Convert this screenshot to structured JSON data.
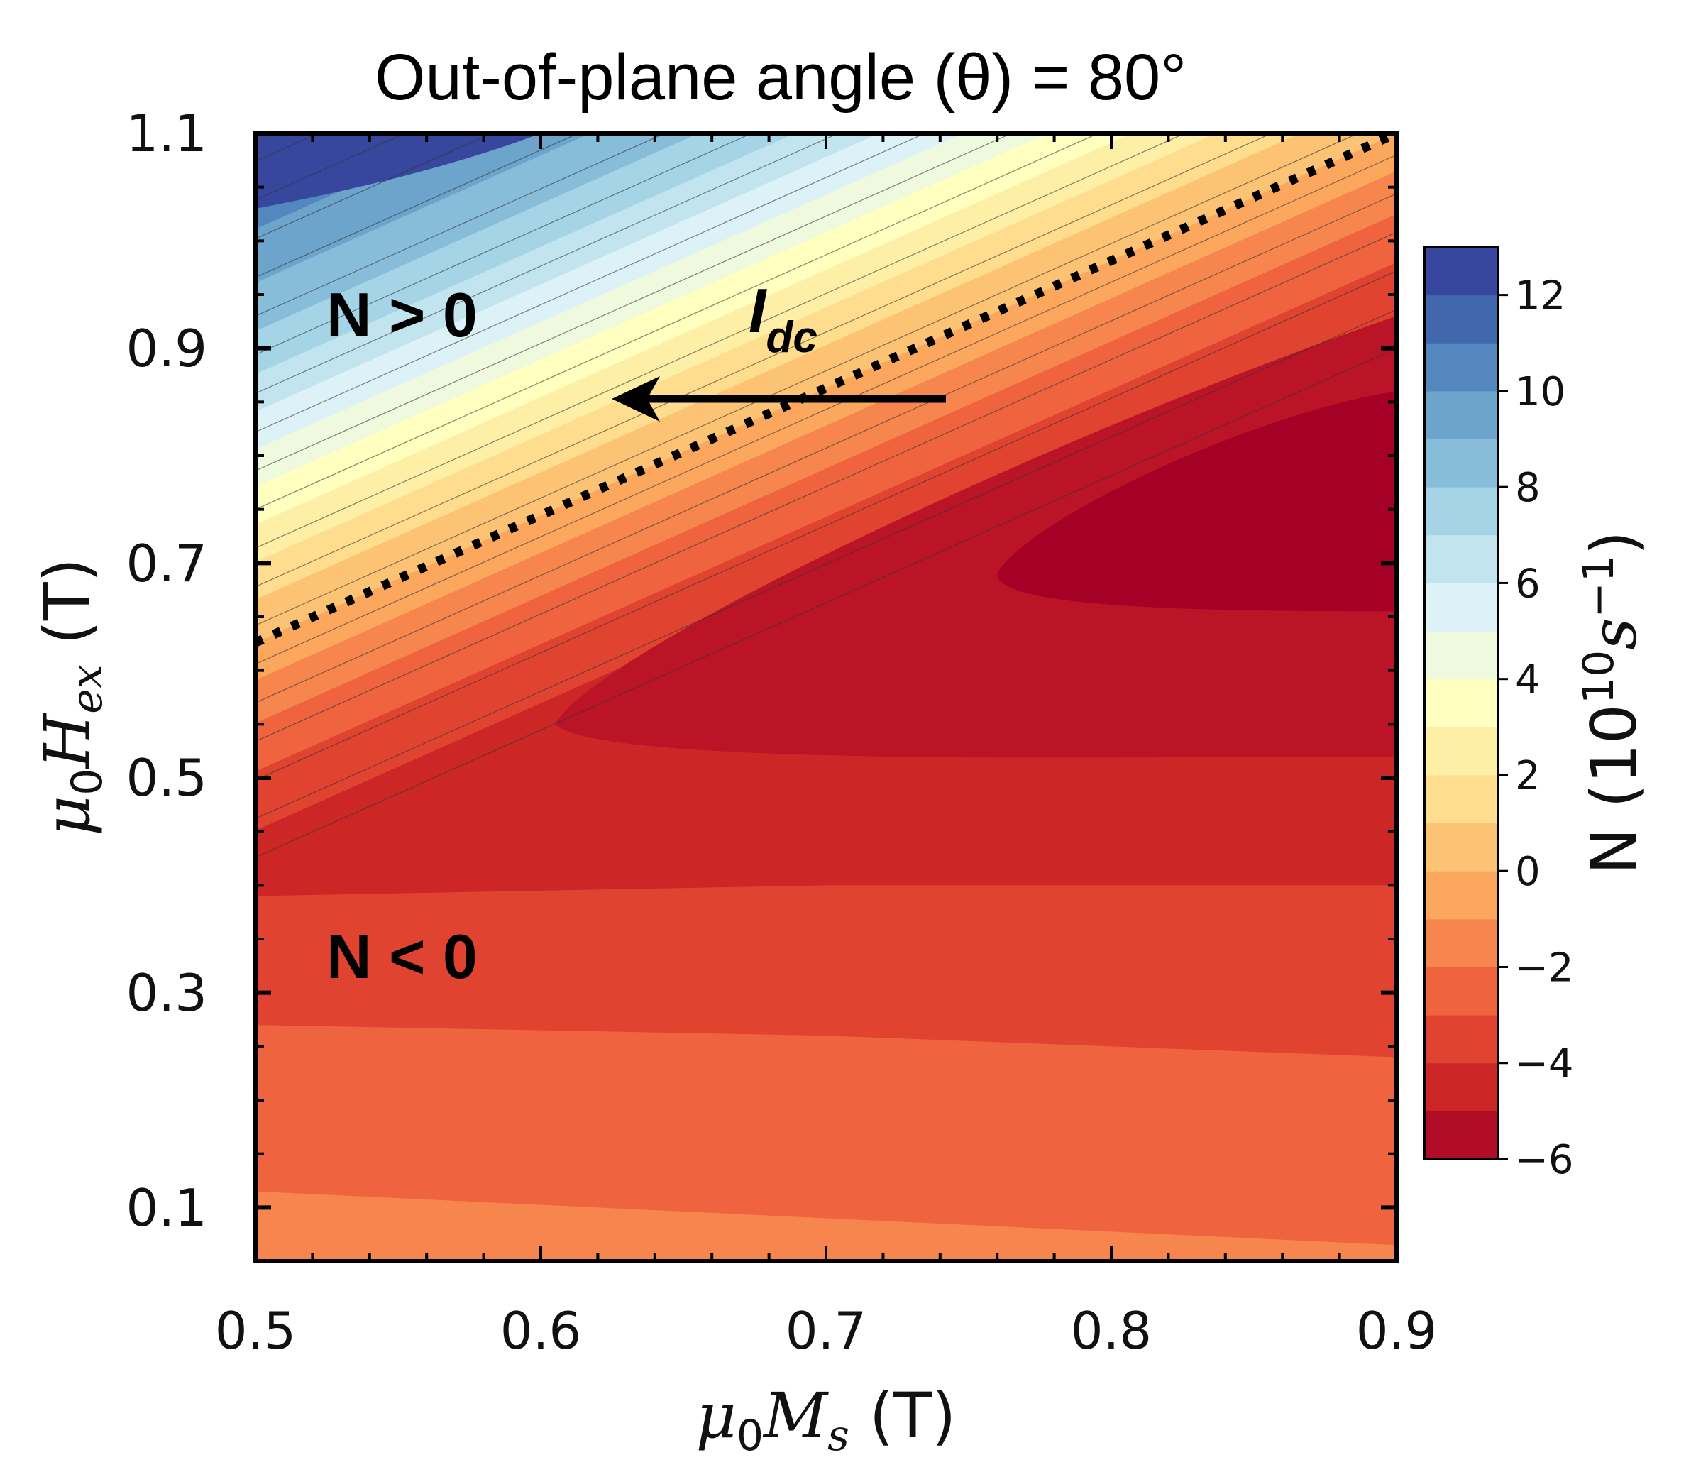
{
  "chart_data": {
    "type": "heatmap",
    "subtype": "filled-contour",
    "title": "Out-of-plane angle (θ) = 80°",
    "xlabel": {
      "symbol": "μ",
      "sub": "0",
      "main": "M",
      "main_sub": "s",
      "unit": " (T)"
    },
    "ylabel": {
      "symbol": "μ",
      "sub": "0",
      "main": "H",
      "main_sub": "ex",
      "unit": " (T)"
    },
    "xlim": [
      0.5,
      0.9
    ],
    "ylim": [
      0.05,
      1.1
    ],
    "xticks": [
      "0.5",
      "0.6",
      "0.7",
      "0.8",
      "0.9"
    ],
    "xtick_values": [
      0.5,
      0.6,
      0.7,
      0.8,
      0.9
    ],
    "yticks": [
      "0.1",
      "0.3",
      "0.5",
      "0.7",
      "0.9",
      "1.1"
    ],
    "ytick_values": [
      0.1,
      0.3,
      0.5,
      0.7,
      0.9,
      1.1
    ],
    "colorbar": {
      "label": "N (10",
      "label_exp": "10",
      "label_unit": "s",
      "label_unit_exp": "−1",
      "range": [
        -6,
        13
      ],
      "ticks": [
        "−6",
        "−4",
        "−2",
        "0",
        "2",
        "4",
        "6",
        "8",
        "10",
        "12"
      ],
      "tick_values": [
        -6,
        -4,
        -2,
        0,
        2,
        4,
        6,
        8,
        10,
        12
      ],
      "level_step": 1,
      "colormap": "RdYlBu"
    },
    "regions": [
      {
        "name": "N > 0 (upper-left, blue/yellow)",
        "level_range": [
          0,
          13
        ]
      },
      {
        "name": "N < 0 (lower-right, red/orange)",
        "level_range": [
          -6,
          0
        ]
      }
    ],
    "zero_contour": {
      "style": "dotted",
      "points": [
        [
          0.5,
          0.626
        ],
        [
          0.9,
          1.1
        ]
      ]
    },
    "minimum_region": {
      "approx_level": -6,
      "center": [
        0.85,
        0.77
      ]
    },
    "annotations": [
      {
        "text": "N > 0",
        "x": 0.54,
        "y": 0.93
      },
      {
        "text": "N < 0",
        "x": 0.54,
        "y": 0.33
      }
    ],
    "arrow": {
      "label": "I",
      "label_sub": "dc",
      "from": [
        0.74,
        0.853
      ],
      "to": [
        0.62,
        0.853
      ]
    }
  }
}
